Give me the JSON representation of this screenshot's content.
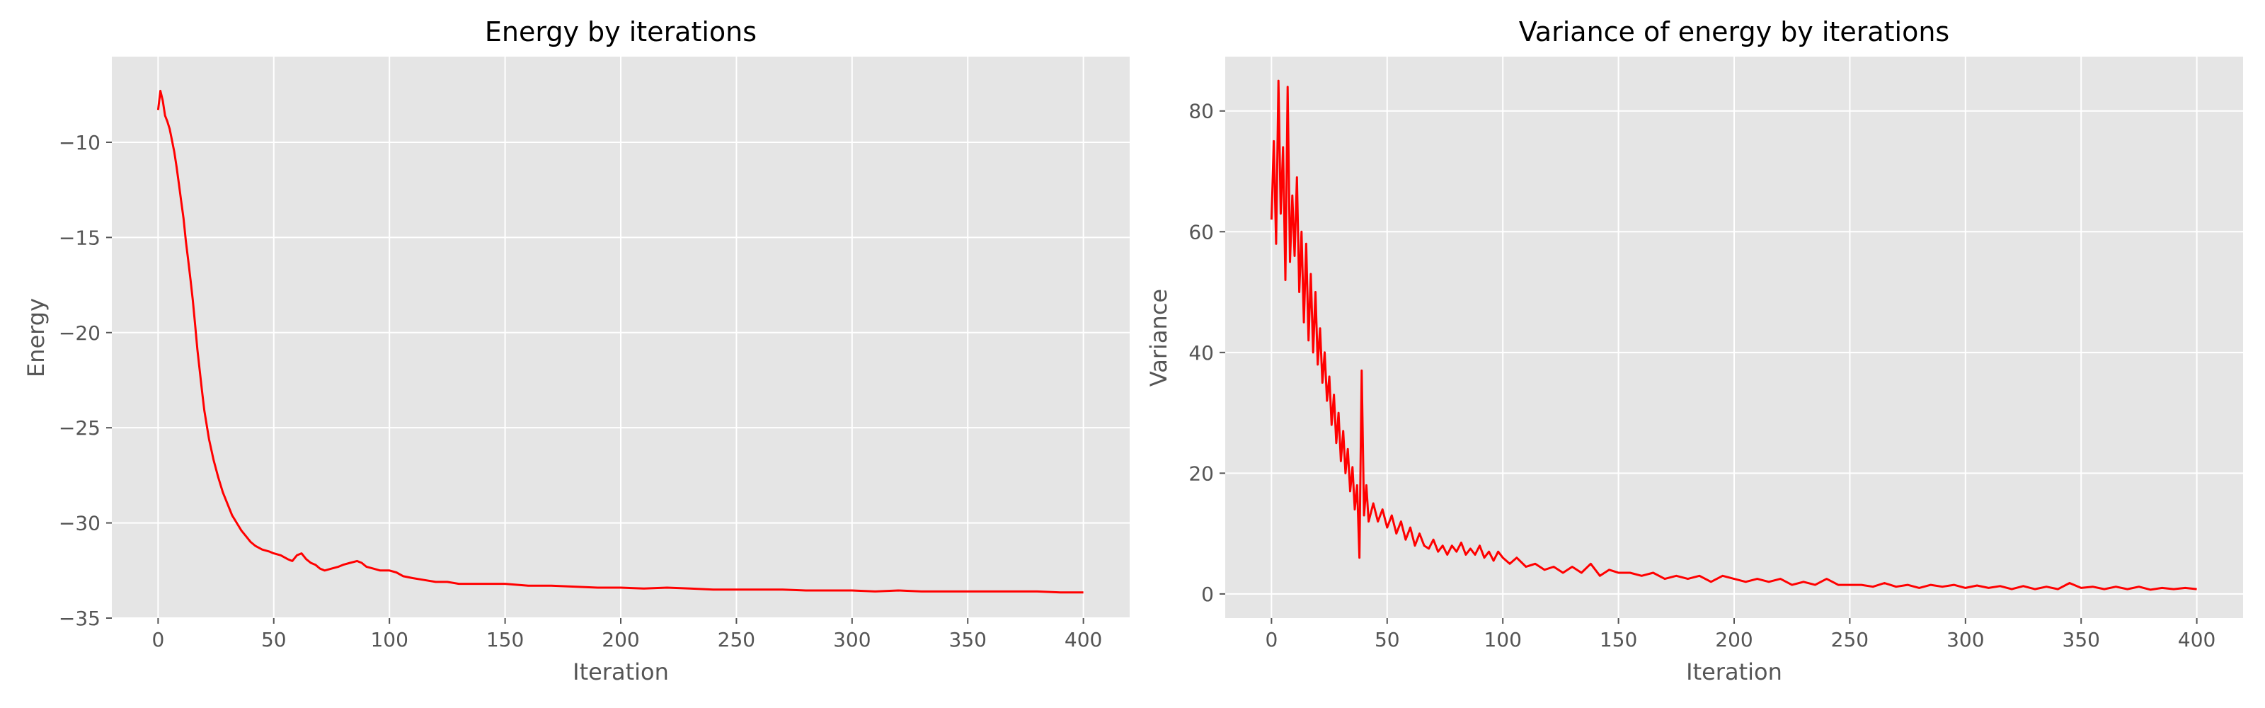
{
  "chart_data": [
    {
      "type": "line",
      "title": "Energy by iterations",
      "xlabel": "Iteration",
      "ylabel": "Energy",
      "xlim": [
        -20,
        420
      ],
      "ylim": [
        -35,
        -5.5
      ],
      "xticks": [
        0,
        50,
        100,
        150,
        200,
        250,
        300,
        350,
        400
      ],
      "yticks": [
        -35,
        -30,
        -25,
        -20,
        -15,
        -10
      ],
      "ytick_labels": [
        "−35",
        "−30",
        "−25",
        "−20",
        "−15",
        "−10"
      ],
      "grid": true,
      "series": [
        {
          "color": "#ff0000",
          "points": [
            [
              0,
              -8.3
            ],
            [
              1,
              -7.3
            ],
            [
              2,
              -7.8
            ],
            [
              3,
              -8.6
            ],
            [
              4,
              -8.9
            ],
            [
              5,
              -9.3
            ],
            [
              6,
              -9.9
            ],
            [
              7,
              -10.5
            ],
            [
              8,
              -11.3
            ],
            [
              9,
              -12.2
            ],
            [
              10,
              -13.1
            ],
            [
              11,
              -14.0
            ],
            [
              12,
              -15.2
            ],
            [
              13,
              -16.2
            ],
            [
              14,
              -17.2
            ],
            [
              15,
              -18.3
            ],
            [
              16,
              -19.6
            ],
            [
              17,
              -20.9
            ],
            [
              18,
              -22.0
            ],
            [
              19,
              -23.1
            ],
            [
              20,
              -24.1
            ],
            [
              22,
              -25.6
            ],
            [
              24,
              -26.7
            ],
            [
              26,
              -27.6
            ],
            [
              28,
              -28.4
            ],
            [
              30,
              -29.0
            ],
            [
              32,
              -29.6
            ],
            [
              34,
              -30.0
            ],
            [
              36,
              -30.4
            ],
            [
              38,
              -30.7
            ],
            [
              40,
              -31.0
            ],
            [
              42,
              -31.2
            ],
            [
              45,
              -31.4
            ],
            [
              48,
              -31.5
            ],
            [
              50,
              -31.6
            ],
            [
              53,
              -31.7
            ],
            [
              56,
              -31.9
            ],
            [
              58,
              -32.0
            ],
            [
              60,
              -31.7
            ],
            [
              62,
              -31.6
            ],
            [
              64,
              -31.9
            ],
            [
              66,
              -32.1
            ],
            [
              68,
              -32.2
            ],
            [
              70,
              -32.4
            ],
            [
              72,
              -32.5
            ],
            [
              75,
              -32.4
            ],
            [
              78,
              -32.3
            ],
            [
              80,
              -32.2
            ],
            [
              83,
              -32.1
            ],
            [
              86,
              -32.0
            ],
            [
              88,
              -32.1
            ],
            [
              90,
              -32.3
            ],
            [
              93,
              -32.4
            ],
            [
              96,
              -32.5
            ],
            [
              100,
              -32.5
            ],
            [
              103,
              -32.6
            ],
            [
              106,
              -32.8
            ],
            [
              110,
              -32.9
            ],
            [
              115,
              -33.0
            ],
            [
              120,
              -33.1
            ],
            [
              125,
              -33.1
            ],
            [
              130,
              -33.2
            ],
            [
              135,
              -33.2
            ],
            [
              140,
              -33.2
            ],
            [
              145,
              -33.2
            ],
            [
              150,
              -33.2
            ],
            [
              160,
              -33.3
            ],
            [
              170,
              -33.3
            ],
            [
              180,
              -33.35
            ],
            [
              190,
              -33.4
            ],
            [
              200,
              -33.4
            ],
            [
              210,
              -33.45
            ],
            [
              220,
              -33.4
            ],
            [
              230,
              -33.45
            ],
            [
              240,
              -33.5
            ],
            [
              250,
              -33.5
            ],
            [
              260,
              -33.5
            ],
            [
              270,
              -33.5
            ],
            [
              280,
              -33.55
            ],
            [
              290,
              -33.55
            ],
            [
              300,
              -33.55
            ],
            [
              310,
              -33.6
            ],
            [
              320,
              -33.55
            ],
            [
              330,
              -33.6
            ],
            [
              340,
              -33.6
            ],
            [
              350,
              -33.6
            ],
            [
              360,
              -33.6
            ],
            [
              370,
              -33.6
            ],
            [
              380,
              -33.6
            ],
            [
              390,
              -33.65
            ],
            [
              400,
              -33.65
            ]
          ]
        }
      ]
    },
    {
      "type": "line",
      "title": "Variance of energy by iterations",
      "xlabel": "Iteration",
      "ylabel": "Variance",
      "xlim": [
        -20,
        420
      ],
      "ylim": [
        -4,
        89
      ],
      "xticks": [
        0,
        50,
        100,
        150,
        200,
        250,
        300,
        350,
        400
      ],
      "yticks": [
        0,
        20,
        40,
        60,
        80
      ],
      "ytick_labels": [
        "0",
        "20",
        "40",
        "60",
        "80"
      ],
      "grid": true,
      "series": [
        {
          "color": "#ff0000",
          "points": [
            [
              0,
              62
            ],
            [
              1,
              75
            ],
            [
              2,
              58
            ],
            [
              3,
              85
            ],
            [
              4,
              63
            ],
            [
              5,
              74
            ],
            [
              6,
              52
            ],
            [
              7,
              84
            ],
            [
              8,
              55
            ],
            [
              9,
              66
            ],
            [
              10,
              56
            ],
            [
              11,
              69
            ],
            [
              12,
              50
            ],
            [
              13,
              60
            ],
            [
              14,
              45
            ],
            [
              15,
              58
            ],
            [
              16,
              42
            ],
            [
              17,
              53
            ],
            [
              18,
              40
            ],
            [
              19,
              50
            ],
            [
              20,
              38
            ],
            [
              21,
              44
            ],
            [
              22,
              35
            ],
            [
              23,
              40
            ],
            [
              24,
              32
            ],
            [
              25,
              36
            ],
            [
              26,
              28
            ],
            [
              27,
              33
            ],
            [
              28,
              25
            ],
            [
              29,
              30
            ],
            [
              30,
              22
            ],
            [
              31,
              27
            ],
            [
              32,
              20
            ],
            [
              33,
              24
            ],
            [
              34,
              17
            ],
            [
              35,
              21
            ],
            [
              36,
              14
            ],
            [
              37,
              18
            ],
            [
              38,
              6
            ],
            [
              39,
              37
            ],
            [
              40,
              13
            ],
            [
              41,
              18
            ],
            [
              42,
              12
            ],
            [
              44,
              15
            ],
            [
              46,
              12
            ],
            [
              48,
              14
            ],
            [
              50,
              11
            ],
            [
              52,
              13
            ],
            [
              54,
              10
            ],
            [
              56,
              12
            ],
            [
              58,
              9
            ],
            [
              60,
              11
            ],
            [
              62,
              8
            ],
            [
              64,
              10
            ],
            [
              66,
              8
            ],
            [
              68,
              7.5
            ],
            [
              70,
              9
            ],
            [
              72,
              7
            ],
            [
              74,
              8
            ],
            [
              76,
              6.5
            ],
            [
              78,
              8
            ],
            [
              80,
              7
            ],
            [
              82,
              8.5
            ],
            [
              84,
              6.5
            ],
            [
              86,
              7.5
            ],
            [
              88,
              6.5
            ],
            [
              90,
              8
            ],
            [
              92,
              6
            ],
            [
              94,
              7
            ],
            [
              96,
              5.5
            ],
            [
              98,
              7
            ],
            [
              100,
              6
            ],
            [
              103,
              5
            ],
            [
              106,
              6
            ],
            [
              110,
              4.5
            ],
            [
              114,
              5
            ],
            [
              118,
              4
            ],
            [
              122,
              4.5
            ],
            [
              126,
              3.5
            ],
            [
              130,
              4.5
            ],
            [
              134,
              3.5
            ],
            [
              138,
              5
            ],
            [
              142,
              3
            ],
            [
              146,
              4
            ],
            [
              150,
              3.5
            ],
            [
              155,
              3.5
            ],
            [
              160,
              3
            ],
            [
              165,
              3.5
            ],
            [
              170,
              2.5
            ],
            [
              175,
              3
            ],
            [
              180,
              2.5
            ],
            [
              185,
              3
            ],
            [
              190,
              2
            ],
            [
              195,
              3
            ],
            [
              200,
              2.5
            ],
            [
              205,
              2
            ],
            [
              210,
              2.5
            ],
            [
              215,
              2
            ],
            [
              220,
              2.5
            ],
            [
              225,
              1.5
            ],
            [
              230,
              2
            ],
            [
              235,
              1.5
            ],
            [
              240,
              2.5
            ],
            [
              245,
              1.5
            ],
            [
              250,
              1.5
            ],
            [
              255,
              1.5
            ],
            [
              260,
              1.2
            ],
            [
              265,
              1.8
            ],
            [
              270,
              1.2
            ],
            [
              275,
              1.5
            ],
            [
              280,
              1
            ],
            [
              285,
              1.5
            ],
            [
              290,
              1.2
            ],
            [
              295,
              1.5
            ],
            [
              300,
              1
            ],
            [
              305,
              1.4
            ],
            [
              310,
              1
            ],
            [
              315,
              1.3
            ],
            [
              320,
              0.8
            ],
            [
              325,
              1.3
            ],
            [
              330,
              0.8
            ],
            [
              335,
              1.2
            ],
            [
              340,
              0.8
            ],
            [
              345,
              1.8
            ],
            [
              350,
              1
            ],
            [
              355,
              1.2
            ],
            [
              360,
              0.8
            ],
            [
              365,
              1.2
            ],
            [
              370,
              0.8
            ],
            [
              375,
              1.2
            ],
            [
              380,
              0.7
            ],
            [
              385,
              1
            ],
            [
              390,
              0.8
            ],
            [
              395,
              1
            ],
            [
              400,
              0.8
            ]
          ]
        }
      ]
    }
  ]
}
